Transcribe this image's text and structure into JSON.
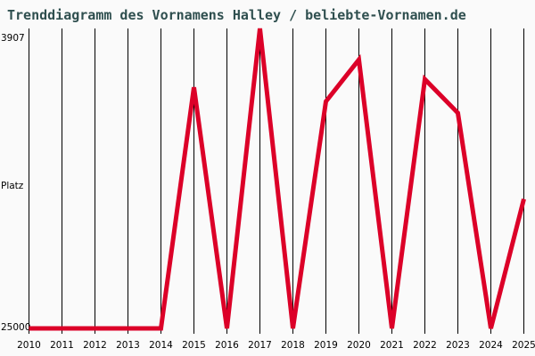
{
  "chart_data": {
    "type": "line",
    "title": "Trenddiagramm des Vornamens Halley / beliebte-Vornamen.de",
    "ylabel": "Platz",
    "y_inverted": true,
    "ylim": [
      3907,
      25000
    ],
    "ytick_labels": [
      "3907",
      "25000"
    ],
    "x": [
      2010,
      2011,
      2012,
      2013,
      2014,
      2015,
      2016,
      2017,
      2018,
      2019,
      2020,
      2021,
      2022,
      2023,
      2024,
      2025
    ],
    "xtick_labels": [
      "2010",
      "2011",
      "2012",
      "2013",
      "2014",
      "2015",
      "2016",
      "2017",
      "2018",
      "2019",
      "2020",
      "2021",
      "2022",
      "2023",
      "2024",
      "2025"
    ],
    "values": [
      25000,
      25000,
      25000,
      25000,
      25000,
      8040,
      25000,
      3907,
      25000,
      9040,
      6100,
      25000,
      7480,
      9850,
      25000,
      15900
    ],
    "grid": "vertical",
    "line_color": "#dc0028",
    "grid_color": "#000000",
    "title_color": "#2f4f4f",
    "background": "#fafafa"
  }
}
